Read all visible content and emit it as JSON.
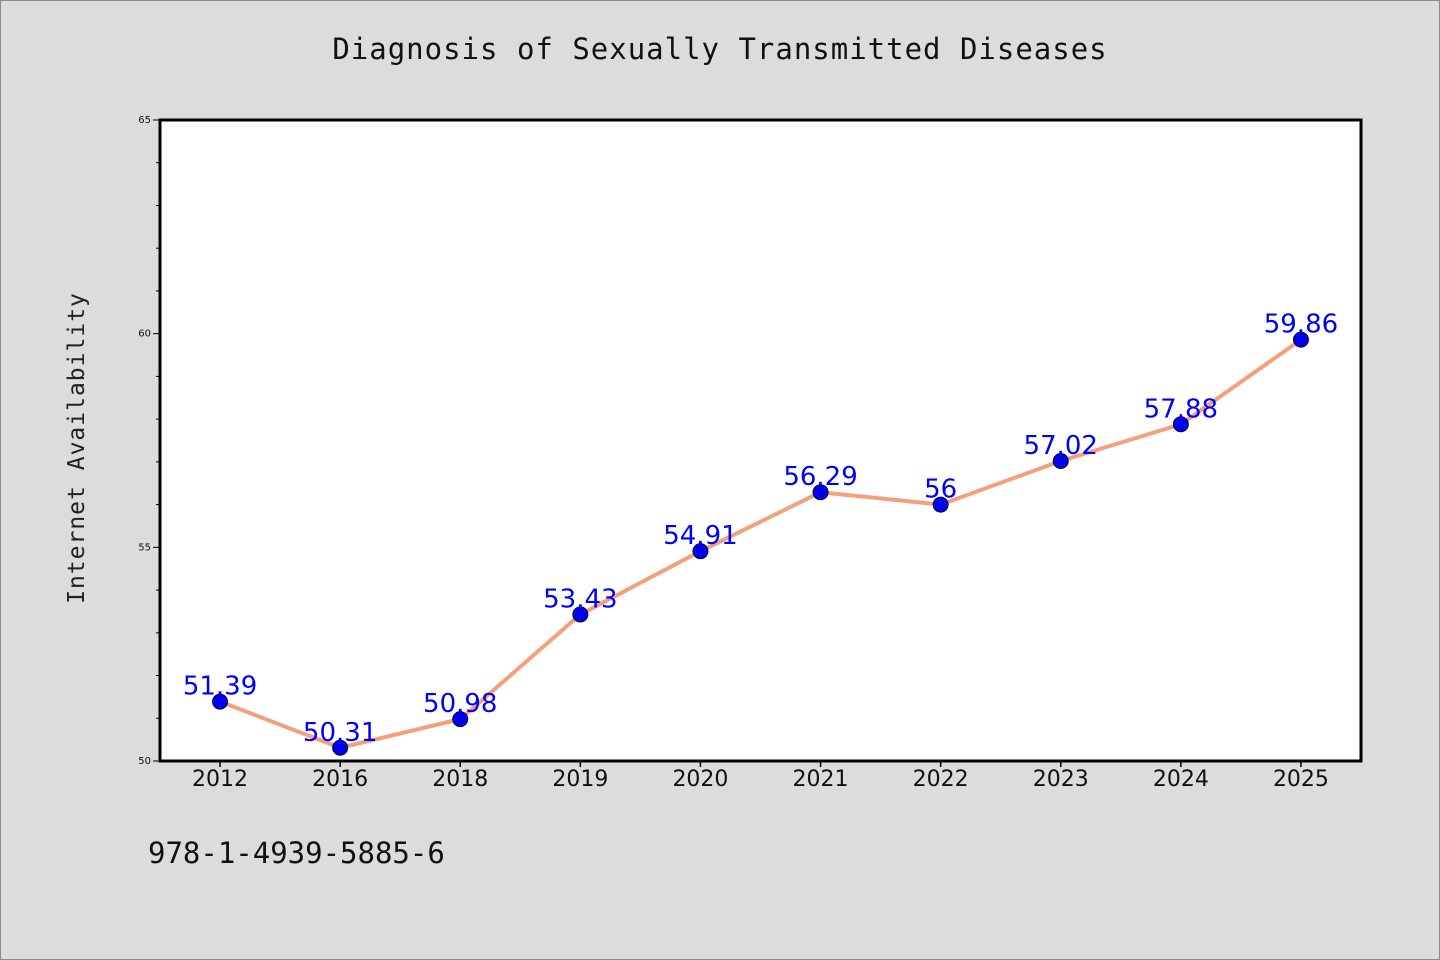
{
  "chart_data": {
    "type": "line",
    "title": "Diagnosis of Sexually Transmitted Diseases",
    "xlabel": "",
    "ylabel": "Internet Availability",
    "categories": [
      "2012",
      "2016",
      "2018",
      "2019",
      "2020",
      "2021",
      "2022",
      "2023",
      "2024",
      "2025"
    ],
    "series": [
      {
        "values": [
          51.39,
          50.31,
          50.98,
          53.43,
          54.91,
          56.29,
          56,
          57.02,
          57.88,
          59.86
        ],
        "labels": [
          "51.39",
          "50.31",
          "50.98",
          "53.43",
          "54.91",
          "56.29",
          "56",
          "57.02",
          "57.88",
          "59.86"
        ],
        "line_color": "#f4a07c",
        "marker_color": "#0000ee"
      }
    ],
    "ylim": [
      50,
      65
    ],
    "yticks": [
      "50",
      "55",
      "60",
      "65"
    ],
    "y_minor_step": 1,
    "grid": false,
    "legend": "none",
    "label_color": "#0000ff"
  },
  "footnote": "978-1-4939-5885-6",
  "colors": {
    "background": "#dcdcdc",
    "plot_area": "#ffffff",
    "axis": "#000000"
  }
}
